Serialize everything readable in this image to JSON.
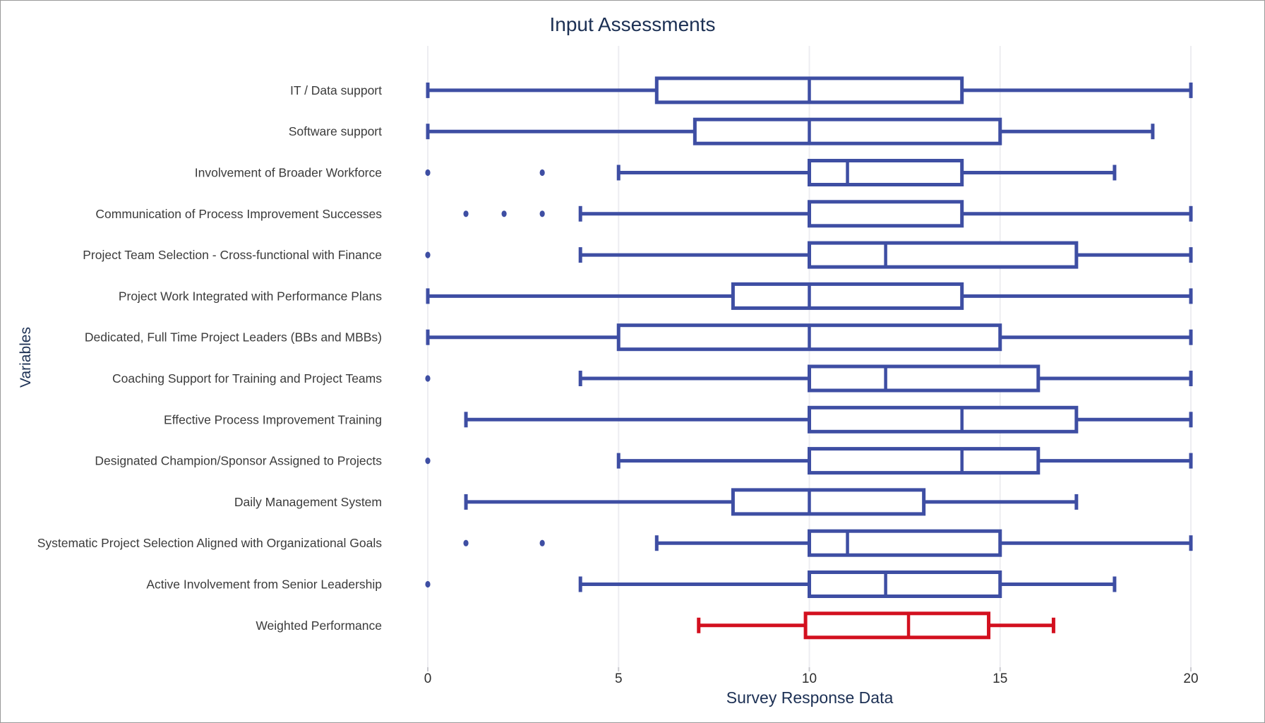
{
  "colors": {
    "box_blue": "#3e4ea3",
    "box_red": "#d3101f",
    "title_navy": "#1c3054",
    "category_text": "#3b3b3b",
    "tick_text": "#2e2e2e",
    "gridline": "#ededf1",
    "tick_mark": "#c9c9cf",
    "box_fill": "#ffffff"
  },
  "chart_data": {
    "type": "boxplot",
    "orientation": "horizontal",
    "title": "Input Assessments",
    "xlabel": "Survey Response Data",
    "ylabel": "Variables",
    "x_ticks": [
      0,
      5,
      10,
      15,
      20
    ],
    "xlim": [
      0,
      20
    ],
    "grid": "vertical-faint",
    "legend": "none",
    "series": [
      {
        "label": "IT / Data support",
        "min": 0,
        "q1": 6,
        "median": 10,
        "q3": 14,
        "max": 20,
        "outliers": [],
        "color_key": "box_blue"
      },
      {
        "label": "Software support",
        "min": 0,
        "q1": 7,
        "median": 10,
        "q3": 15,
        "max": 19,
        "outliers": [],
        "color_key": "box_blue"
      },
      {
        "label": "Involvement of Broader Workforce",
        "min": 5,
        "q1": 10,
        "median": 11,
        "q3": 14,
        "max": 18,
        "outliers": [
          0,
          3
        ],
        "color_key": "box_blue"
      },
      {
        "label": "Communication of Process Improvement Successes",
        "min": 4,
        "q1": 10,
        "median": 10,
        "q3": 14,
        "max": 20,
        "outliers": [
          1,
          2,
          3
        ],
        "color_key": "box_blue"
      },
      {
        "label": "Project Team Selection - Cross-functional with Finance",
        "min": 4,
        "q1": 10,
        "median": 12,
        "q3": 17,
        "max": 20,
        "outliers": [
          0
        ],
        "color_key": "box_blue"
      },
      {
        "label": "Project Work Integrated with Performance Plans",
        "min": 0,
        "q1": 8,
        "median": 10,
        "q3": 14,
        "max": 20,
        "outliers": [],
        "color_key": "box_blue"
      },
      {
        "label": "Dedicated, Full Time Project Leaders (BBs and MBBs)",
        "min": 0,
        "q1": 5,
        "median": 10,
        "q3": 15,
        "max": 20,
        "outliers": [],
        "color_key": "box_blue"
      },
      {
        "label": "Coaching Support for Training and Project Teams",
        "min": 4,
        "q1": 10,
        "median": 12,
        "q3": 16,
        "max": 20,
        "outliers": [
          0
        ],
        "color_key": "box_blue"
      },
      {
        "label": "Effective Process Improvement Training",
        "min": 1,
        "q1": 10,
        "median": 14,
        "q3": 17,
        "max": 20,
        "outliers": [],
        "color_key": "box_blue"
      },
      {
        "label": "Designated Champion/Sponsor Assigned to Projects",
        "min": 5,
        "q1": 10,
        "median": 14,
        "q3": 16,
        "max": 20,
        "outliers": [
          0
        ],
        "color_key": "box_blue"
      },
      {
        "label": "Daily Management System",
        "min": 1,
        "q1": 8,
        "median": 10,
        "q3": 13,
        "max": 17,
        "outliers": [],
        "color_key": "box_blue"
      },
      {
        "label": "Systematic Project Selection Aligned with Organizational Goals",
        "min": 6,
        "q1": 10,
        "median": 11,
        "q3": 15,
        "max": 20,
        "outliers": [
          1,
          3
        ],
        "color_key": "box_blue"
      },
      {
        "label": "Active Involvement from Senior Leadership",
        "min": 4,
        "q1": 10,
        "median": 12,
        "q3": 15,
        "max": 18,
        "outliers": [
          0
        ],
        "color_key": "box_blue"
      },
      {
        "label": "Weighted Performance",
        "min": 7.1,
        "q1": 9.9,
        "median": 12.6,
        "q3": 14.7,
        "max": 16.4,
        "outliers": [],
        "color_key": "box_red"
      }
    ]
  }
}
